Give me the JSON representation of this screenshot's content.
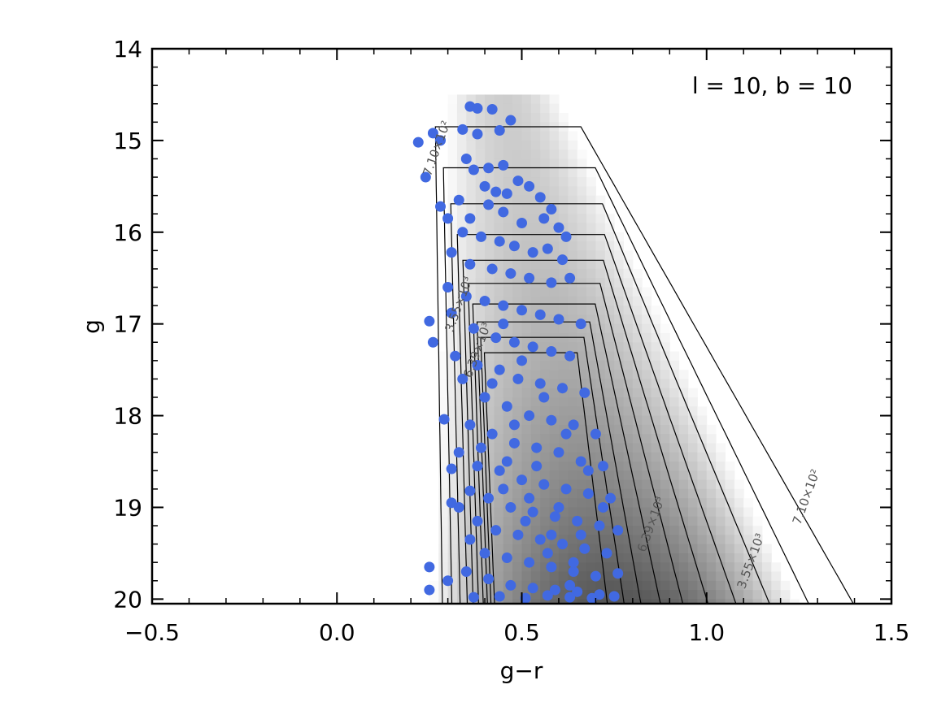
{
  "chart_data": {
    "type": "scatter",
    "title": "",
    "xlabel": "g−r",
    "ylabel": "g",
    "xlim": [
      -0.5,
      1.5
    ],
    "ylim": [
      20.05,
      14.0
    ],
    "y_inverted": true,
    "x_ticks": [
      -0.5,
      0.0,
      0.5,
      1.0,
      1.5
    ],
    "x_tick_labels": [
      "−0.5",
      "0.0",
      "0.5",
      "1.0",
      "1.5"
    ],
    "y_ticks": [
      14,
      15,
      16,
      17,
      18,
      19,
      20
    ],
    "y_tick_labels": [
      "14",
      "15",
      "16",
      "17",
      "18",
      "19",
      "20"
    ],
    "annotation": "l = 10, b = 10",
    "grid": false,
    "colors": {
      "points": "#4169e1",
      "contour": "#000000",
      "density_max": "#3a3a3a"
    },
    "contour_labels": [
      {
        "text": "7.10×10²",
        "x": 0.28,
        "y": 15.1
      },
      {
        "text": "3.55×10³",
        "x": 0.34,
        "y": 16.8
      },
      {
        "text": "6.39×10³",
        "x": 0.39,
        "y": 17.3
      },
      {
        "text": "6.39×10³",
        "x": 0.86,
        "y": 19.2
      },
      {
        "text": "3.55×10³",
        "x": 1.13,
        "y": 19.6
      },
      {
        "text": "7.10×10²",
        "x": 1.28,
        "y": 18.9
      }
    ],
    "series": [
      {
        "kind": "points",
        "values": [
          [
            0.26,
            14.92
          ],
          [
            0.28,
            15.0
          ],
          [
            0.34,
            14.88
          ],
          [
            0.36,
            14.63
          ],
          [
            0.38,
            14.65
          ],
          [
            0.42,
            14.66
          ],
          [
            0.47,
            14.78
          ],
          [
            0.44,
            14.89
          ],
          [
            0.38,
            14.93
          ],
          [
            0.22,
            15.02
          ],
          [
            0.24,
            15.4
          ],
          [
            0.35,
            15.2
          ],
          [
            0.37,
            15.32
          ],
          [
            0.41,
            15.3
          ],
          [
            0.45,
            15.27
          ],
          [
            0.4,
            15.5
          ],
          [
            0.43,
            15.56
          ],
          [
            0.46,
            15.58
          ],
          [
            0.49,
            15.44
          ],
          [
            0.52,
            15.5
          ],
          [
            0.55,
            15.62
          ],
          [
            0.58,
            15.75
          ],
          [
            0.33,
            15.65
          ],
          [
            0.28,
            15.72
          ],
          [
            0.3,
            15.85
          ],
          [
            0.36,
            15.85
          ],
          [
            0.41,
            15.7
          ],
          [
            0.45,
            15.78
          ],
          [
            0.5,
            15.9
          ],
          [
            0.56,
            15.85
          ],
          [
            0.6,
            15.95
          ],
          [
            0.62,
            16.05
          ],
          [
            0.34,
            16.0
          ],
          [
            0.39,
            16.05
          ],
          [
            0.44,
            16.1
          ],
          [
            0.48,
            16.15
          ],
          [
            0.53,
            16.22
          ],
          [
            0.57,
            16.18
          ],
          [
            0.61,
            16.3
          ],
          [
            0.31,
            16.22
          ],
          [
            0.36,
            16.35
          ],
          [
            0.42,
            16.4
          ],
          [
            0.47,
            16.45
          ],
          [
            0.52,
            16.5
          ],
          [
            0.58,
            16.55
          ],
          [
            0.63,
            16.5
          ],
          [
            0.3,
            16.6
          ],
          [
            0.35,
            16.7
          ],
          [
            0.4,
            16.75
          ],
          [
            0.45,
            16.8
          ],
          [
            0.5,
            16.85
          ],
          [
            0.55,
            16.9
          ],
          [
            0.6,
            16.95
          ],
          [
            0.66,
            17.0
          ],
          [
            0.31,
            16.88
          ],
          [
            0.37,
            17.05
          ],
          [
            0.43,
            17.15
          ],
          [
            0.48,
            17.2
          ],
          [
            0.53,
            17.25
          ],
          [
            0.58,
            17.3
          ],
          [
            0.63,
            17.35
          ],
          [
            0.25,
            16.97
          ],
          [
            0.26,
            17.2
          ],
          [
            0.32,
            17.35
          ],
          [
            0.38,
            17.45
          ],
          [
            0.44,
            17.5
          ],
          [
            0.49,
            17.6
          ],
          [
            0.55,
            17.65
          ],
          [
            0.61,
            17.7
          ],
          [
            0.67,
            17.75
          ],
          [
            0.34,
            17.6
          ],
          [
            0.4,
            17.8
          ],
          [
            0.46,
            17.9
          ],
          [
            0.52,
            18.0
          ],
          [
            0.58,
            18.05
          ],
          [
            0.64,
            18.1
          ],
          [
            0.7,
            18.2
          ],
          [
            0.29,
            18.04
          ],
          [
            0.36,
            18.1
          ],
          [
            0.42,
            18.2
          ],
          [
            0.48,
            18.3
          ],
          [
            0.54,
            18.35
          ],
          [
            0.6,
            18.4
          ],
          [
            0.66,
            18.5
          ],
          [
            0.72,
            18.55
          ],
          [
            0.33,
            18.4
          ],
          [
            0.38,
            18.55
          ],
          [
            0.44,
            18.6
          ],
          [
            0.5,
            18.7
          ],
          [
            0.56,
            18.75
          ],
          [
            0.62,
            18.8
          ],
          [
            0.68,
            18.85
          ],
          [
            0.74,
            18.9
          ],
          [
            0.31,
            18.58
          ],
          [
            0.36,
            18.82
          ],
          [
            0.41,
            18.9
          ],
          [
            0.47,
            19.0
          ],
          [
            0.53,
            19.05
          ],
          [
            0.59,
            19.1
          ],
          [
            0.65,
            19.15
          ],
          [
            0.71,
            19.2
          ],
          [
            0.76,
            19.25
          ],
          [
            0.31,
            18.95
          ],
          [
            0.33,
            19.0
          ],
          [
            0.38,
            19.15
          ],
          [
            0.43,
            19.25
          ],
          [
            0.49,
            19.3
          ],
          [
            0.55,
            19.35
          ],
          [
            0.61,
            19.4
          ],
          [
            0.67,
            19.45
          ],
          [
            0.73,
            19.5
          ],
          [
            0.36,
            19.35
          ],
          [
            0.4,
            19.5
          ],
          [
            0.46,
            19.55
          ],
          [
            0.52,
            19.6
          ],
          [
            0.58,
            19.65
          ],
          [
            0.64,
            19.7
          ],
          [
            0.7,
            19.75
          ],
          [
            0.76,
            19.72
          ],
          [
            0.25,
            19.65
          ],
          [
            0.3,
            19.8
          ],
          [
            0.35,
            19.7
          ],
          [
            0.41,
            19.78
          ],
          [
            0.47,
            19.85
          ],
          [
            0.53,
            19.88
          ],
          [
            0.59,
            19.9
          ],
          [
            0.65,
            19.92
          ],
          [
            0.71,
            19.95
          ],
          [
            0.25,
            19.9
          ],
          [
            0.37,
            19.98
          ],
          [
            0.44,
            19.97
          ],
          [
            0.51,
            19.99
          ],
          [
            0.57,
            19.96
          ],
          [
            0.63,
            19.98
          ],
          [
            0.69,
            19.99
          ],
          [
            0.75,
            19.97
          ],
          [
            0.45,
            17.0
          ],
          [
            0.5,
            17.4
          ],
          [
            0.56,
            17.8
          ],
          [
            0.62,
            18.2
          ],
          [
            0.68,
            18.6
          ],
          [
            0.72,
            19.0
          ],
          [
            0.46,
            18.5
          ],
          [
            0.52,
            18.9
          ],
          [
            0.58,
            19.3
          ],
          [
            0.64,
            19.6
          ],
          [
            0.39,
            18.35
          ],
          [
            0.45,
            18.8
          ],
          [
            0.51,
            19.15
          ],
          [
            0.57,
            19.5
          ],
          [
            0.63,
            19.85
          ],
          [
            0.42,
            17.65
          ],
          [
            0.48,
            18.1
          ],
          [
            0.54,
            18.55
          ],
          [
            0.6,
            19.0
          ],
          [
            0.66,
            19.3
          ]
        ]
      }
    ]
  }
}
